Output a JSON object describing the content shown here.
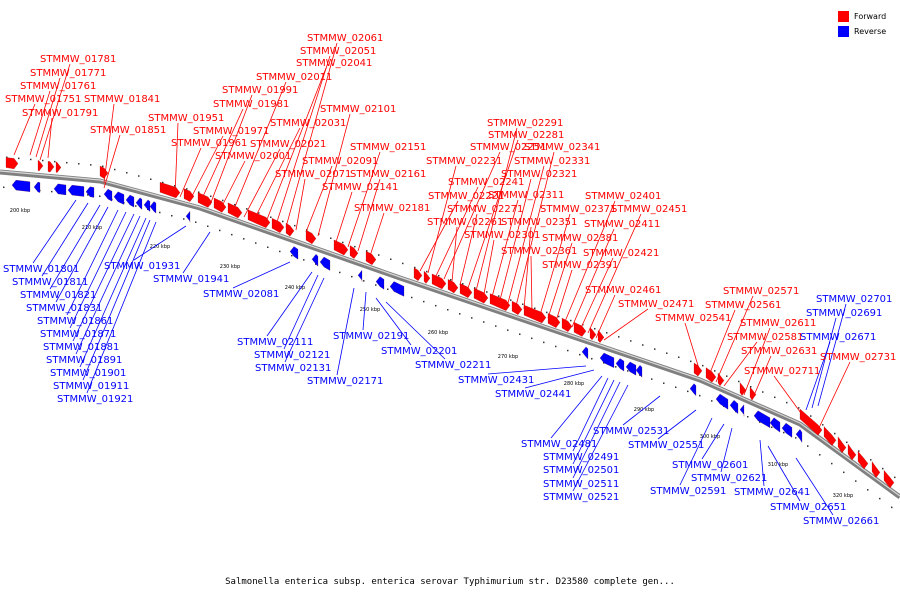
{
  "title": "Salmonella enterica subsp. enterica serovar Typhimurium str. D23580 complete gen...",
  "legend": [
    {
      "label": "Forward",
      "color": "#ff0000"
    },
    {
      "label": "Reverse",
      "color": "#0000ff"
    }
  ],
  "colors": {
    "forward": "#ff0000",
    "reverse": "#0000ff",
    "axis": "#808080"
  },
  "ticks": [
    "200 kbp",
    "210 kbp",
    "220 kbp",
    "230 kbp",
    "240 kbp",
    "250 kbp",
    "260 kbp",
    "270 kbp",
    "280 kbp",
    "290 kbp",
    "300 kbp",
    "310 kbp",
    "320 kbp"
  ],
  "forward_genes": [
    {
      "name": "STMMW_01781"
    },
    {
      "name": "STMMW_01771"
    },
    {
      "name": "STMMW_01761"
    },
    {
      "name": "STMMW_01751"
    },
    {
      "name": "STMMW_01791"
    },
    {
      "name": "STMMW_01841"
    },
    {
      "name": "STMMW_01851"
    },
    {
      "name": "STMMW_01951"
    },
    {
      "name": "STMMW_01961"
    },
    {
      "name": "STMMW_01971"
    },
    {
      "name": "STMMW_01981"
    },
    {
      "name": "STMMW_01991"
    },
    {
      "name": "STMMW_02001"
    },
    {
      "name": "STMMW_02011"
    },
    {
      "name": "STMMW_02021"
    },
    {
      "name": "STMMW_02031"
    },
    {
      "name": "STMMW_02041"
    },
    {
      "name": "STMMW_02051"
    },
    {
      "name": "STMMW_02061"
    },
    {
      "name": "STMMW_02071"
    },
    {
      "name": "STMMW_02091"
    },
    {
      "name": "STMMW_02101"
    },
    {
      "name": "STMMW_02141"
    },
    {
      "name": "STMMW_02151"
    },
    {
      "name": "STMMW_02161"
    },
    {
      "name": "STMMW_02181"
    },
    {
      "name": "STMMW_02221"
    },
    {
      "name": "STMMW_02231"
    },
    {
      "name": "STMMW_02241"
    },
    {
      "name": "STMMW_02251"
    },
    {
      "name": "STMMW_02261"
    },
    {
      "name": "STMMW_02271"
    },
    {
      "name": "STMMW_02281"
    },
    {
      "name": "STMMW_02291"
    },
    {
      "name": "STMMW_02301"
    },
    {
      "name": "STMMW_02311"
    },
    {
      "name": "STMMW_02321"
    },
    {
      "name": "STMMW_02331"
    },
    {
      "name": "STMMW_02341"
    },
    {
      "name": "STMMW_02351"
    },
    {
      "name": "STMMW_02361"
    },
    {
      "name": "STMMW_02371"
    },
    {
      "name": "STMMW_02381"
    },
    {
      "name": "STMMW_02391"
    },
    {
      "name": "STMMW_02401"
    },
    {
      "name": "STMMW_02411"
    },
    {
      "name": "STMMW_02421"
    },
    {
      "name": "STMMW_02451"
    },
    {
      "name": "STMMW_02461"
    },
    {
      "name": "STMMW_02471"
    },
    {
      "name": "STMMW_02541"
    },
    {
      "name": "STMMW_02561"
    },
    {
      "name": "STMMW_02571"
    },
    {
      "name": "STMMW_02581"
    },
    {
      "name": "STMMW_02611"
    },
    {
      "name": "STMMW_02631"
    },
    {
      "name": "STMMW_02711"
    },
    {
      "name": "STMMW_02731"
    }
  ],
  "reverse_genes": [
    {
      "name": "STMMW_01801"
    },
    {
      "name": "STMMW_01811"
    },
    {
      "name": "STMMW_01821"
    },
    {
      "name": "STMMW_01831"
    },
    {
      "name": "STMMW_01861"
    },
    {
      "name": "STMMW_01871"
    },
    {
      "name": "STMMW_01881"
    },
    {
      "name": "STMMW_01891"
    },
    {
      "name": "STMMW_01901"
    },
    {
      "name": "STMMW_01911"
    },
    {
      "name": "STMMW_01921"
    },
    {
      "name": "STMMW_01931"
    },
    {
      "name": "STMMW_01941"
    },
    {
      "name": "STMMW_02081"
    },
    {
      "name": "STMMW_02111"
    },
    {
      "name": "STMMW_02121"
    },
    {
      "name": "STMMW_02131"
    },
    {
      "name": "STMMW_02171"
    },
    {
      "name": "STMMW_02191"
    },
    {
      "name": "STMMW_02201"
    },
    {
      "name": "STMMW_02211"
    },
    {
      "name": "STMMW_02431"
    },
    {
      "name": "STMMW_02441"
    },
    {
      "name": "STMMW_02481"
    },
    {
      "name": "STMMW_02491"
    },
    {
      "name": "STMMW_02501"
    },
    {
      "name": "STMMW_02511"
    },
    {
      "name": "STMMW_02521"
    },
    {
      "name": "STMMW_02531"
    },
    {
      "name": "STMMW_02551"
    },
    {
      "name": "STMMW_02591"
    },
    {
      "name": "STMMW_02601"
    },
    {
      "name": "STMMW_02621"
    },
    {
      "name": "STMMW_02641"
    },
    {
      "name": "STMMW_02651"
    },
    {
      "name": "STMMW_02661"
    },
    {
      "name": "STMMW_02671"
    },
    {
      "name": "STMMW_02691"
    },
    {
      "name": "STMMW_02701"
    }
  ]
}
